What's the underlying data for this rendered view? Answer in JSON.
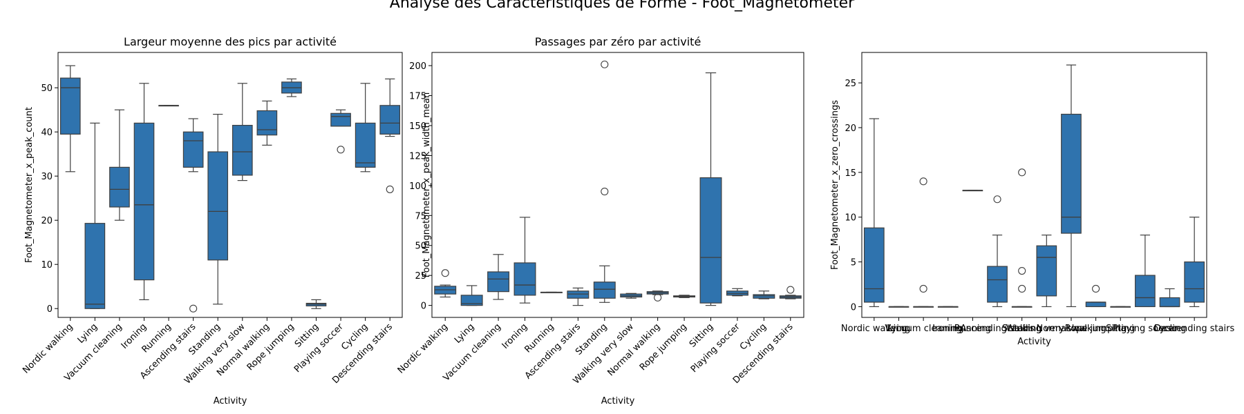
{
  "figure": {
    "suptitle": "Analyse des Caractéristiques de Forme - Foot_Magnetometer"
  },
  "chart_data": [
    {
      "type": "box",
      "title": "Largeur moyenne des pics par activité",
      "xlabel": "Activity",
      "ylabel": "Foot_Magnetometer_x_peak_count",
      "ylim": [
        -2,
        58
      ],
      "yticks": [
        0,
        10,
        20,
        30,
        40,
        50
      ],
      "tick_rotation": 45,
      "box_color": "#2f73ae",
      "categories": [
        "Nordic walking",
        "Lying",
        "Vacuum cleaning",
        "Ironing",
        "Running",
        "Ascending stairs",
        "Standing",
        "Walking very slow",
        "Normal walking",
        "Rope jumping",
        "Sitting",
        "Playing soccer",
        "Cycling",
        "Descending stairs"
      ],
      "boxes": [
        {
          "whislo": 31,
          "q1": 39.5,
          "med": 50,
          "q3": 52.2,
          "whishi": 55,
          "fliers": []
        },
        {
          "whislo": 0,
          "q1": 0,
          "med": 1,
          "q3": 19.3,
          "whishi": 42,
          "fliers": []
        },
        {
          "whislo": 20,
          "q1": 23,
          "med": 27,
          "q3": 32,
          "whishi": 45,
          "fliers": []
        },
        {
          "whislo": 2,
          "q1": 6.5,
          "med": 23.5,
          "q3": 42,
          "whishi": 51,
          "fliers": []
        },
        {
          "whislo": 46,
          "q1": 46,
          "med": 46,
          "q3": 46,
          "whishi": 46,
          "fliers": []
        },
        {
          "whislo": 31,
          "q1": 32,
          "med": 38,
          "q3": 40,
          "whishi": 43,
          "fliers": [
            0
          ]
        },
        {
          "whislo": 1,
          "q1": 11,
          "med": 22,
          "q3": 35.5,
          "whishi": 44,
          "fliers": []
        },
        {
          "whislo": 29,
          "q1": 30.2,
          "med": 35.5,
          "q3": 41.5,
          "whishi": 51,
          "fliers": []
        },
        {
          "whislo": 37,
          "q1": 39.3,
          "med": 40.5,
          "q3": 44.8,
          "whishi": 47,
          "fliers": []
        },
        {
          "whislo": 48,
          "q1": 48.8,
          "med": 50,
          "q3": 51.3,
          "whishi": 52,
          "fliers": []
        },
        {
          "whislo": 0,
          "q1": 0.6,
          "med": 1,
          "q3": 1.2,
          "whishi": 2,
          "fliers": []
        },
        {
          "whislo": 41.3,
          "q1": 41.3,
          "med": 43.5,
          "q3": 44.2,
          "whishi": 45,
          "fliers": [
            36
          ]
        },
        {
          "whislo": 31,
          "q1": 32,
          "med": 33,
          "q3": 42,
          "whishi": 51,
          "fliers": []
        },
        {
          "whislo": 39,
          "q1": 39.5,
          "med": 42,
          "q3": 46,
          "whishi": 52,
          "fliers": [
            27
          ]
        }
      ]
    },
    {
      "type": "box",
      "title": "Passages par zéro par activité",
      "xlabel": "Activity",
      "ylabel": "Foot_Magnetometer_x_peak_width_mean",
      "ylim": [
        -10,
        211
      ],
      "yticks": [
        0,
        25,
        50,
        75,
        100,
        125,
        150,
        175,
        200
      ],
      "tick_rotation": 45,
      "box_color": "#2f73ae",
      "categories": [
        "Nordic walking",
        "Lying",
        "Vacuum cleaning",
        "Ironing",
        "Running",
        "Ascending stairs",
        "Standing",
        "Walking very slow",
        "Normal walking",
        "Rope jumping",
        "Sitting",
        "Playing soccer",
        "Cycling",
        "Descending stairs"
      ],
      "boxes": [
        {
          "whislo": 7,
          "q1": 9.5,
          "med": 13,
          "q3": 16,
          "whishi": 17,
          "fliers": [
            27
          ]
        },
        {
          "whislo": 0,
          "q1": 0,
          "med": 1.5,
          "q3": 8.5,
          "whishi": 16.5,
          "fliers": []
        },
        {
          "whislo": 5,
          "q1": 11.5,
          "med": 22,
          "q3": 28,
          "whishi": 42.5,
          "fliers": []
        },
        {
          "whislo": 2,
          "q1": 8.5,
          "med": 17,
          "q3": 35.5,
          "whishi": 73.5,
          "fliers": []
        },
        {
          "whislo": 11,
          "q1": 11,
          "med": 11,
          "q3": 11,
          "whishi": 11,
          "fliers": []
        },
        {
          "whislo": 0,
          "q1": 6,
          "med": 9.5,
          "q3": 12,
          "whishi": 14.5,
          "fliers": []
        },
        {
          "whislo": 2.5,
          "q1": 6,
          "med": 13.5,
          "q3": 19.5,
          "whishi": 33,
          "fliers": [
            95,
            201
          ]
        },
        {
          "whislo": 6,
          "q1": 7,
          "med": 8,
          "q3": 9.5,
          "whishi": 10,
          "fliers": []
        },
        {
          "whislo": 9,
          "q1": 9.5,
          "med": 10.5,
          "q3": 11.5,
          "whishi": 12,
          "fliers": [
            6.5
          ]
        },
        {
          "whislo": 6.5,
          "q1": 7,
          "med": 7.5,
          "q3": 8,
          "whishi": 8.5,
          "fliers": []
        },
        {
          "whislo": 0,
          "q1": 2,
          "med": 40,
          "q3": 106.5,
          "whishi": 194,
          "fliers": []
        },
        {
          "whislo": 8,
          "q1": 8.5,
          "med": 10,
          "q3": 12,
          "whishi": 14,
          "fliers": []
        },
        {
          "whislo": 5.5,
          "q1": 6,
          "med": 8,
          "q3": 9,
          "whishi": 12,
          "fliers": []
        },
        {
          "whislo": 5.5,
          "q1": 6,
          "med": 7,
          "q3": 8,
          "whishi": 8.5,
          "fliers": [
            13
          ]
        }
      ]
    },
    {
      "type": "box",
      "title": "",
      "xlabel": "Activity",
      "ylabel": "Foot_Magnetometer_x_zero_crossings",
      "ylim": [
        -1.2,
        28.4
      ],
      "yticks": [
        0,
        5,
        10,
        15,
        20,
        25
      ],
      "tick_rotation": 0,
      "box_color": "#2f73ae",
      "categories": [
        "Nordic walking",
        "Lying",
        "Vacuum cleaning",
        "Ironing",
        "Running",
        "Ascending stairs",
        "Standing",
        "Walking very slow",
        "Normal walking",
        "Rope jumping",
        "Sitting",
        "Playing soccer",
        "Cycling",
        "Descending stairs"
      ],
      "boxes": [
        {
          "whislo": 0,
          "q1": 0.5,
          "med": 2,
          "q3": 8.8,
          "whishi": 21,
          "fliers": []
        },
        {
          "whislo": 0,
          "q1": 0,
          "med": 0,
          "q3": 0,
          "whishi": 0,
          "fliers": []
        },
        {
          "whislo": 0,
          "q1": 0,
          "med": 0,
          "q3": 0,
          "whishi": 0,
          "fliers": [
            2,
            14
          ]
        },
        {
          "whislo": 0,
          "q1": 0,
          "med": 0,
          "q3": 0,
          "whishi": 0,
          "fliers": []
        },
        {
          "whislo": 13,
          "q1": 13,
          "med": 13,
          "q3": 13,
          "whishi": 13,
          "fliers": []
        },
        {
          "whislo": 0,
          "q1": 0.5,
          "med": 3,
          "q3": 4.5,
          "whishi": 8,
          "fliers": [
            12
          ]
        },
        {
          "whislo": 0,
          "q1": 0,
          "med": 0,
          "q3": 0,
          "whishi": 0,
          "fliers": [
            2,
            4,
            15
          ]
        },
        {
          "whislo": 0,
          "q1": 1.2,
          "med": 5.5,
          "q3": 6.8,
          "whishi": 8,
          "fliers": []
        },
        {
          "whislo": 0,
          "q1": 8.2,
          "med": 10,
          "q3": 21.5,
          "whishi": 27,
          "fliers": []
        },
        {
          "whislo": 0,
          "q1": 0,
          "med": 0.5,
          "q3": 0.5,
          "whishi": 0.5,
          "fliers": [
            2
          ]
        },
        {
          "whislo": 0,
          "q1": 0,
          "med": 0,
          "q3": 0,
          "whishi": 0,
          "fliers": []
        },
        {
          "whislo": 0,
          "q1": 0,
          "med": 1,
          "q3": 3.5,
          "whishi": 8,
          "fliers": []
        },
        {
          "whislo": 0,
          "q1": 0,
          "med": 0,
          "q3": 1,
          "whishi": 2,
          "fliers": []
        },
        {
          "whislo": 0,
          "q1": 0.5,
          "med": 2,
          "q3": 5,
          "whishi": 10,
          "fliers": []
        }
      ]
    }
  ]
}
